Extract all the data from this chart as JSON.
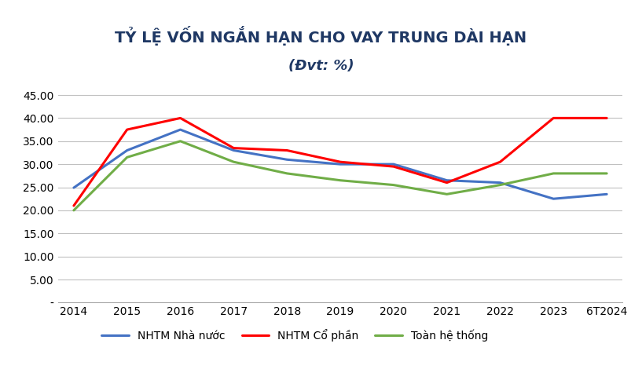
{
  "title_line1": "TỶ LỆ VỐN NGẮN HẠN CHO VAY TRUNG DÀI HẠN",
  "title_line2": "(Đvt: %)",
  "years": [
    "2014",
    "2015",
    "2016",
    "2017",
    "2018",
    "2019",
    "2020",
    "2021",
    "2022",
    "2023",
    "6T2024"
  ],
  "nhtm_nn": [
    24.9,
    33.0,
    37.5,
    33.0,
    31.0,
    30.0,
    30.0,
    26.5,
    26.0,
    22.5,
    23.5
  ],
  "nhtm_cp": [
    21.0,
    37.5,
    40.0,
    33.5,
    33.0,
    30.5,
    29.5,
    26.0,
    30.5,
    40.0,
    40.0
  ],
  "toan_he_thong": [
    20.0,
    31.5,
    35.0,
    30.5,
    28.0,
    26.5,
    25.5,
    23.5,
    25.5,
    28.0,
    28.0
  ],
  "color_nn": "#4472C4",
  "color_cp": "#FF0000",
  "color_ths": "#70AD47",
  "legend_nn": "NHTM Nhà nước",
  "legend_cp": "NHTM Cổ phần",
  "legend_ths": "Toàn hệ thống",
  "ylim_min": 0,
  "ylim_max": 48,
  "yticks": [
    0,
    5.0,
    10.0,
    15.0,
    20.0,
    25.0,
    30.0,
    35.0,
    40.0,
    45.0
  ],
  "ytick_labels": [
    "-",
    "5.00",
    "10.00",
    "15.00",
    "20.00",
    "25.00",
    "30.00",
    "35.00",
    "40.00",
    "45.00"
  ],
  "background_color": "#FFFFFF",
  "grid_color": "#C0C0C0",
  "title_color": "#1F3864",
  "linewidth": 2.2,
  "marker_size": 0
}
